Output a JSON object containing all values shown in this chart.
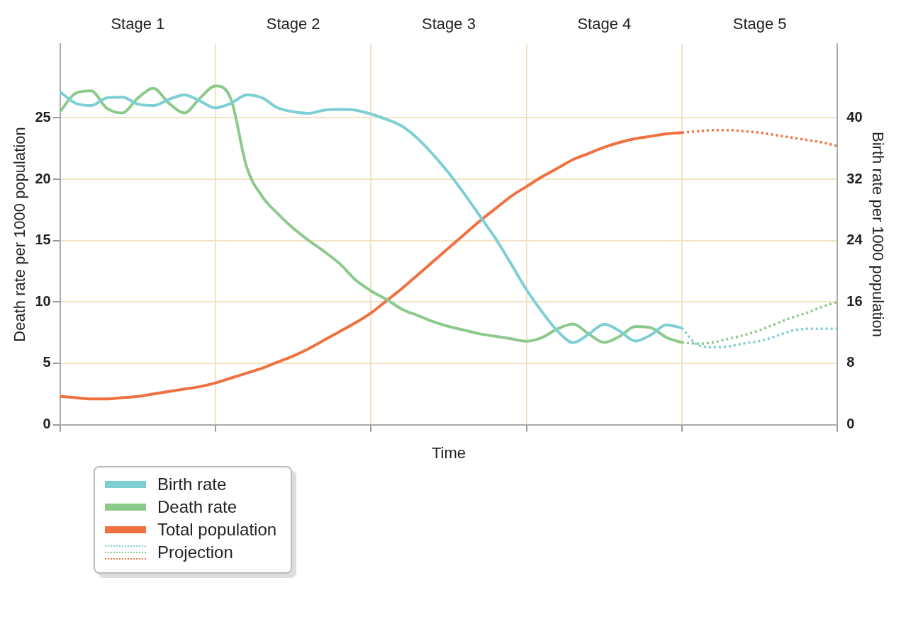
{
  "chart_data": {
    "type": "line",
    "xlabel": "Time",
    "ylabel": "Death rate per 1000 population",
    "y2label": "Birth rate per 1000 population",
    "categories": [
      null,
      null,
      null,
      null,
      null,
      "Stage 1",
      null,
      null,
      null,
      null,
      null,
      null,
      null,
      null,
      null,
      "Stage 2",
      null,
      null,
      null,
      null,
      null,
      null,
      null,
      null,
      null,
      "Stage 3",
      null,
      null,
      null,
      null,
      null,
      null,
      null,
      null,
      null,
      "Stage 4",
      null,
      null,
      null,
      null,
      null,
      null,
      null,
      null,
      null,
      "Stage 5",
      null,
      null,
      null,
      null,
      null
    ],
    "ylim": [
      0,
      31
    ],
    "yticks": [
      0,
      5,
      10,
      15,
      20,
      25
    ],
    "y2lim": [
      0,
      49.6
    ],
    "y2ticks": [
      0,
      8,
      16,
      24,
      32,
      40
    ],
    "grid": true,
    "legend": "bottom left",
    "marker": "none",
    "series": [
      {
        "name": "Birth rate",
        "color": "#7ecfd4",
        "axis": "y2",
        "line_style": "solid",
        "values": [
          43.4,
          41.9,
          41.6,
          42.6,
          42.7,
          41.8,
          41.6,
          42.4,
          43.0,
          42.2,
          41.3,
          41.9,
          43.0,
          42.6,
          41.3,
          40.8,
          40.6,
          41.0,
          41.1,
          41.0,
          40.5,
          39.8,
          38.9,
          37.3,
          35.2,
          32.8,
          30.1,
          27.2,
          24.3,
          21.0,
          17.6,
          14.7,
          12.2,
          10.7,
          11.8,
          13.1,
          12.2,
          10.9,
          11.7,
          13.0,
          12.6,
          null,
          null,
          null,
          null,
          null,
          null,
          null,
          null,
          null,
          null
        ]
      },
      {
        "name": "Death rate",
        "color": "#8cca8c",
        "line_style": "solid",
        "values": [
          25.5,
          27.0,
          27.2,
          25.8,
          25.4,
          26.6,
          27.4,
          26.2,
          25.4,
          26.6,
          27.6,
          26.5,
          21.0,
          18.6,
          17.2,
          16.0,
          15.0,
          14.1,
          13.1,
          11.8,
          10.9,
          10.2,
          9.4,
          8.9,
          8.4,
          8.0,
          7.7,
          7.4,
          7.2,
          7.0,
          6.8,
          7.1,
          7.8,
          8.2,
          7.4,
          6.7,
          7.2,
          8.0,
          7.9,
          7.1,
          6.7,
          null,
          null,
          null,
          null,
          null,
          null,
          null,
          null,
          null,
          null
        ]
      },
      {
        "name": "Total population",
        "color": "#f07040",
        "line_style": "solid",
        "values": [
          2.3,
          2.2,
          2.1,
          2.1,
          2.2,
          2.3,
          2.5,
          2.7,
          2.9,
          3.1,
          3.4,
          3.8,
          4.2,
          4.6,
          5.1,
          5.6,
          6.2,
          6.9,
          7.6,
          8.3,
          9.1,
          10.1,
          11.1,
          12.2,
          13.3,
          14.4,
          15.5,
          16.6,
          17.6,
          18.6,
          19.4,
          20.2,
          20.9,
          21.6,
          22.1,
          22.6,
          23.0,
          23.3,
          23.5,
          23.7,
          23.8,
          null,
          null,
          null,
          null,
          null,
          null,
          null,
          null,
          null,
          null
        ]
      },
      {
        "name": "Projection",
        "color": "#7ecfd4",
        "axis": "y2",
        "line_style": "dotted",
        "values": [
          null,
          null,
          null,
          null,
          null,
          null,
          null,
          null,
          null,
          null,
          null,
          null,
          null,
          null,
          null,
          null,
          null,
          null,
          null,
          null,
          null,
          null,
          null,
          null,
          null,
          null,
          null,
          null,
          null,
          null,
          null,
          null,
          null,
          null,
          null,
          null,
          null,
          null,
          null,
          null,
          12.6,
          10.4,
          10.1,
          10.2,
          10.6,
          10.9,
          11.5,
          12.2,
          12.5,
          12.5,
          12.5
        ]
      },
      {
        "color": "#8cca8c",
        "line_style": "dotted",
        "values": [
          null,
          null,
          null,
          null,
          null,
          null,
          null,
          null,
          null,
          null,
          null,
          null,
          null,
          null,
          null,
          null,
          null,
          null,
          null,
          null,
          null,
          null,
          null,
          null,
          null,
          null,
          null,
          null,
          null,
          null,
          null,
          null,
          null,
          null,
          null,
          null,
          null,
          null,
          null,
          null,
          6.7,
          6.6,
          6.7,
          7.0,
          7.3,
          7.7,
          8.2,
          8.7,
          9.1,
          9.6,
          10.0
        ]
      },
      {
        "color": "#f07040",
        "line_style": "dotted",
        "values": [
          null,
          null,
          null,
          null,
          null,
          null,
          null,
          null,
          null,
          null,
          null,
          null,
          null,
          null,
          null,
          null,
          null,
          null,
          null,
          null,
          null,
          null,
          null,
          null,
          null,
          null,
          null,
          null,
          null,
          null,
          null,
          null,
          null,
          null,
          null,
          null,
          null,
          null,
          null,
          null,
          23.8,
          23.9,
          24.0,
          24.0,
          23.9,
          23.8,
          23.6,
          23.4,
          23.2,
          23.0,
          22.7
        ]
      }
    ]
  }
}
